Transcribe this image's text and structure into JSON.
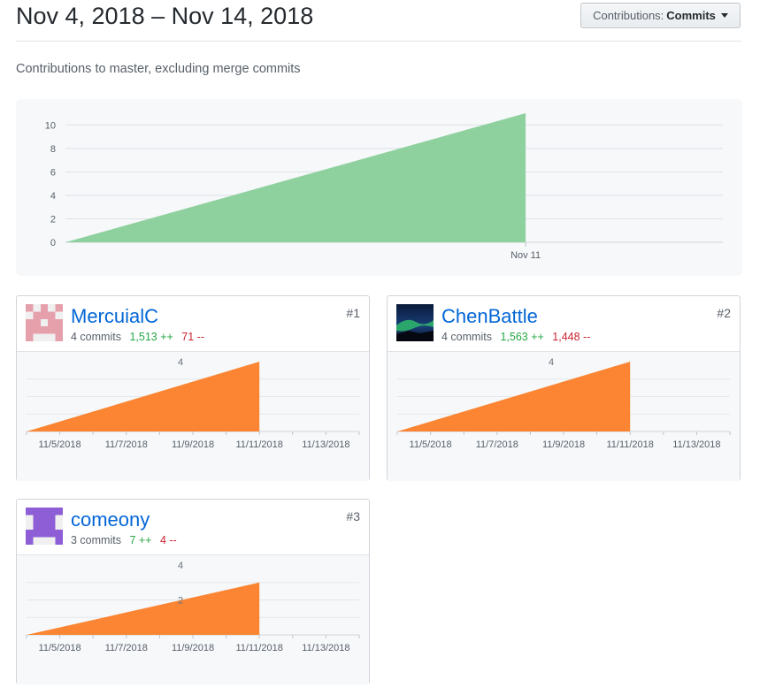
{
  "header": {
    "title": "Nov 4, 2018 – Nov 14, 2018",
    "dropdown_prefix": "Contributions:",
    "dropdown_value": "Commits"
  },
  "subtitle": "Contributions to master, excluding merge commits",
  "colors": {
    "main_area": "#8fd19e",
    "contributor_area": "#fb8532",
    "link": "#0366d6",
    "additions": "#28a745",
    "deletions": "#cb2431"
  },
  "chart_data": [
    {
      "type": "area",
      "x": [
        "Nov 4",
        "Nov 11"
      ],
      "values": [
        0,
        11
      ],
      "x_tick_labels": [
        "Nov 11"
      ],
      "y_ticks": [
        0,
        2,
        4,
        6,
        8,
        10
      ],
      "xlim": [
        "Nov 4",
        "Nov 14"
      ],
      "ylim": [
        0,
        11
      ],
      "grid": true
    },
    {
      "type": "area",
      "x": [
        "11/4/2018",
        "11/11/2018"
      ],
      "values": [
        0,
        4
      ],
      "x_tick_labels": [
        "11/5/2018",
        "11/7/2018",
        "11/9/2018",
        "11/11/2018",
        "11/13/2018"
      ],
      "y_ticks": [
        4
      ],
      "ylim": [
        0,
        4
      ],
      "grid": true
    },
    {
      "type": "area",
      "x": [
        "11/4/2018",
        "11/11/2018"
      ],
      "values": [
        0,
        4
      ],
      "x_tick_labels": [
        "11/5/2018",
        "11/7/2018",
        "11/9/2018",
        "11/11/2018",
        "11/13/2018"
      ],
      "y_ticks": [
        4
      ],
      "ylim": [
        0,
        4
      ],
      "grid": true
    },
    {
      "type": "area",
      "x": [
        "11/4/2018",
        "11/11/2018"
      ],
      "values": [
        0,
        3
      ],
      "x_tick_labels": [
        "11/5/2018",
        "11/7/2018",
        "11/9/2018",
        "11/11/2018",
        "11/13/2018"
      ],
      "y_ticks": [
        4,
        2
      ],
      "ylim": [
        0,
        4
      ],
      "grid": true
    }
  ],
  "contributors": [
    {
      "name": "MercuialC",
      "rank": "#1",
      "commits": "4 commits",
      "additions": "1,513 ++",
      "deletions": "71 --",
      "avatar": "pink-pixel-identicon"
    },
    {
      "name": "ChenBattle",
      "rank": "#2",
      "commits": "4 commits",
      "additions": "1,563 ++",
      "deletions": "1,448 --",
      "avatar": "aurora-photo-avatar"
    },
    {
      "name": "comeony",
      "rank": "#3",
      "commits": "3 commits",
      "additions": "7 ++",
      "deletions": "4 --",
      "avatar": "purple-pixel-identicon"
    }
  ]
}
